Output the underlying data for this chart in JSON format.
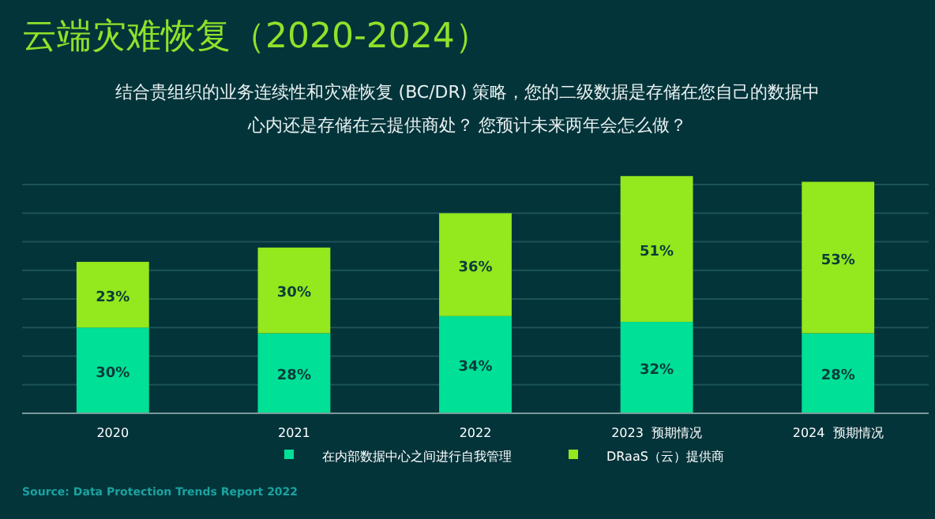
{
  "chart_data": {
    "type": "bar",
    "title": "云端灾难恢复（2020-2024）",
    "subtitle": "结合贵组织的业务连续性和灾难恢复 (BC/DR) 策略，您的二级数据是存储在您自己的数据中心内还是存储在云提供商处？ 您预计未来两年会怎么做？",
    "categories": [
      "2020",
      "2021",
      "2022",
      "2023  预期情况",
      "2024  预期情况"
    ],
    "stacked": true,
    "legend": "bottom",
    "grid": "y",
    "tick_labels": "x",
    "ylim": [
      0,
      85
    ],
    "yticks": [
      {
        "value": 0,
        "label": null
      },
      {
        "value": 10,
        "label": null
      },
      {
        "value": 20,
        "label": null
      },
      {
        "value": 30,
        "label": null
      },
      {
        "value": 40,
        "label": null
      },
      {
        "value": 50,
        "label": null
      },
      {
        "value": 60,
        "label": null
      },
      {
        "value": 70,
        "label": null
      },
      {
        "value": 80,
        "label": null
      }
    ],
    "series": [
      {
        "name": "在内部数据中心之间进行自我管理",
        "color": "#00e096",
        "values": [
          30,
          28,
          34,
          32,
          28
        ],
        "value_labels": [
          "30%",
          "28%",
          "34%",
          "32%",
          "28%"
        ]
      },
      {
        "name": "DRaaS（云）提供商",
        "color": "#93e81e",
        "values": [
          23,
          30,
          36,
          51,
          53
        ],
        "value_labels": [
          "23%",
          "30%",
          "36%",
          "51%",
          "53%"
        ]
      }
    ],
    "annotations": [
      "Source: Data Protection Trends Report 2022"
    ]
  }
}
